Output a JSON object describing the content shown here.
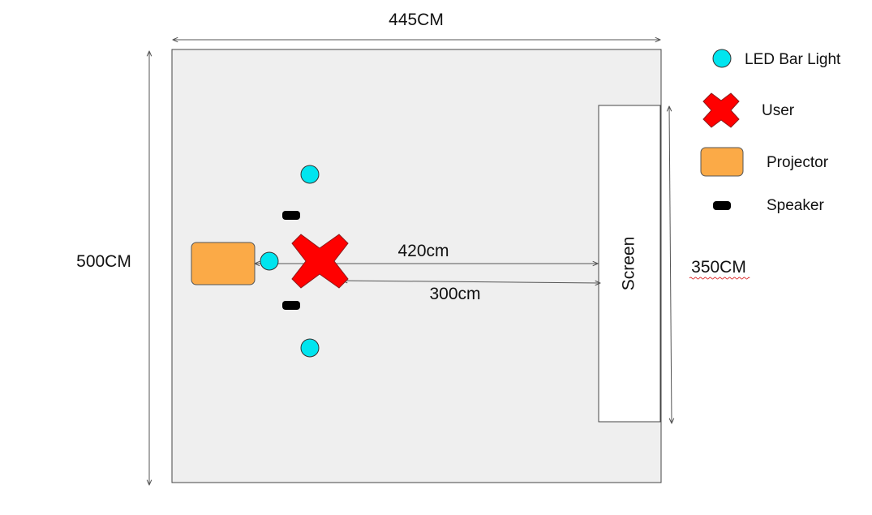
{
  "dimensions": {
    "room_width": "445CM",
    "room_height": "500CM",
    "screen_width": "350CM",
    "user_to_screen_far": "420cm",
    "user_to_screen_near": "300cm"
  },
  "screen": {
    "label": "Screen"
  },
  "legend": {
    "led": "LED Bar Light",
    "user": "User",
    "projector": "Projector",
    "speaker": "Speaker"
  },
  "colors": {
    "room_fill": "#efefef",
    "led": "#00e5ef",
    "user": "#ff0000",
    "projector": "#fbaa47",
    "speaker": "#000000",
    "line": "#555555"
  }
}
